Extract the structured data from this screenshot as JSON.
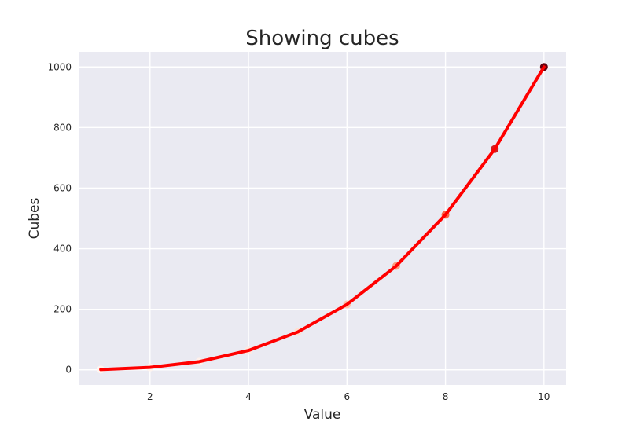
{
  "chart_data": {
    "type": "line",
    "title": "Showing cubes",
    "xlabel": "Value",
    "ylabel": "Cubes",
    "xlim": [
      0.55,
      10.45
    ],
    "ylim": [
      -49.95,
      1049.95
    ],
    "xticks": [
      2,
      4,
      6,
      8,
      10
    ],
    "yticks": [
      0,
      200,
      400,
      600,
      800,
      1000
    ],
    "grid": true,
    "series": [
      {
        "x": [
          1,
          2,
          3,
          4,
          5,
          6,
          7,
          8,
          9,
          10
        ],
        "y": [
          1,
          8,
          27,
          64,
          125,
          216,
          343,
          512,
          729,
          1000
        ]
      }
    ],
    "colors": {
      "line": "#ff0000",
      "background": "#eaeaf2",
      "grid": "#ffffff",
      "point_colormap": "Reds"
    }
  }
}
